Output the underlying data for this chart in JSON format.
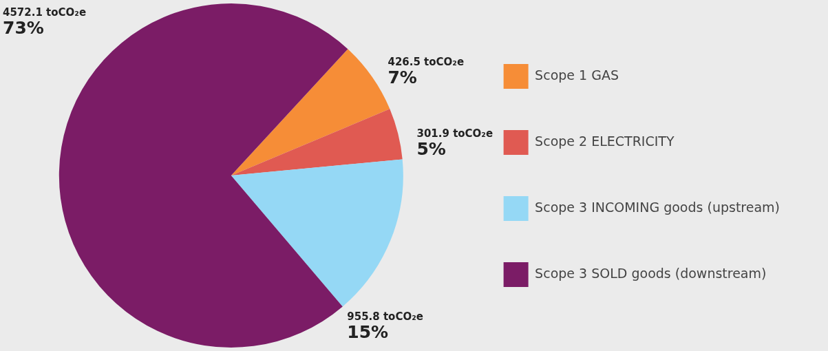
{
  "chart_data": {
    "type": "pie",
    "categories": [
      "Scope 1 GAS",
      "Scope 2 ELECTRICITY",
      "Scope 3 INCOMING goods (upstream)",
      "Scope 3 SOLD goods (downstream)"
    ],
    "values": [
      426.5,
      301.9,
      955.8,
      4572.1
    ],
    "colors": [
      "#f68d37",
      "#e05a52",
      "#95d8f5",
      "#7b1c66"
    ],
    "value_labels": [
      "426.5 toCO₂e",
      "301.9 toCO₂e",
      "955.8 toCO₂e",
      "4572.1 toCO₂e"
    ],
    "annotations": [
      {
        "text": "7%",
        "x": "Scope 1 GAS"
      },
      {
        "text": "5%",
        "x": "Scope 2 ELECTRICITY"
      },
      {
        "text": "15%",
        "x": "Scope 3 INCOMING goods (upstream)"
      },
      {
        "text": "73%",
        "x": "Scope 3 SOLD goods (downstream)"
      }
    ],
    "legend": "right"
  }
}
